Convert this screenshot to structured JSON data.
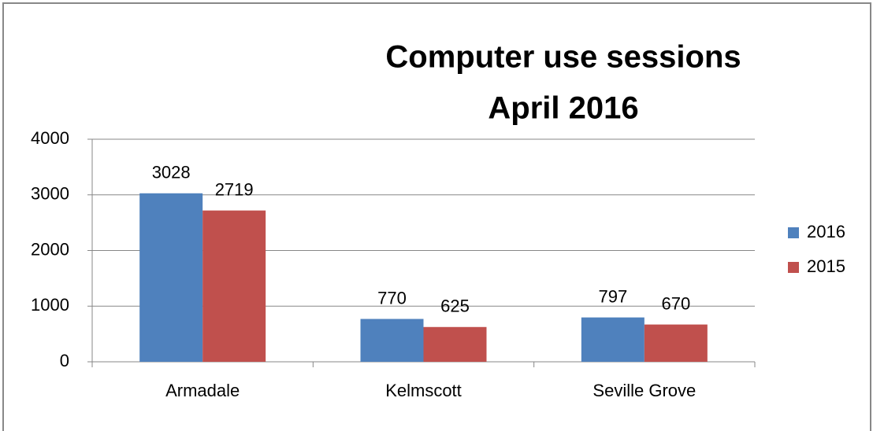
{
  "chart_data": {
    "type": "bar",
    "title": [
      "Computer use sessions",
      "April 2016"
    ],
    "categories": [
      "Armadale",
      "Kelmscott",
      "Seville Grove"
    ],
    "series": [
      {
        "name": "2016",
        "color": "#4f81bd",
        "values": [
          3028,
          770,
          797
        ]
      },
      {
        "name": "2015",
        "color": "#c0504d",
        "values": [
          2719,
          625,
          670
        ]
      }
    ],
    "ylim": [
      0,
      4000
    ],
    "yticks": [
      0,
      1000,
      2000,
      3000,
      4000
    ],
    "grid": true,
    "legend": "right"
  }
}
